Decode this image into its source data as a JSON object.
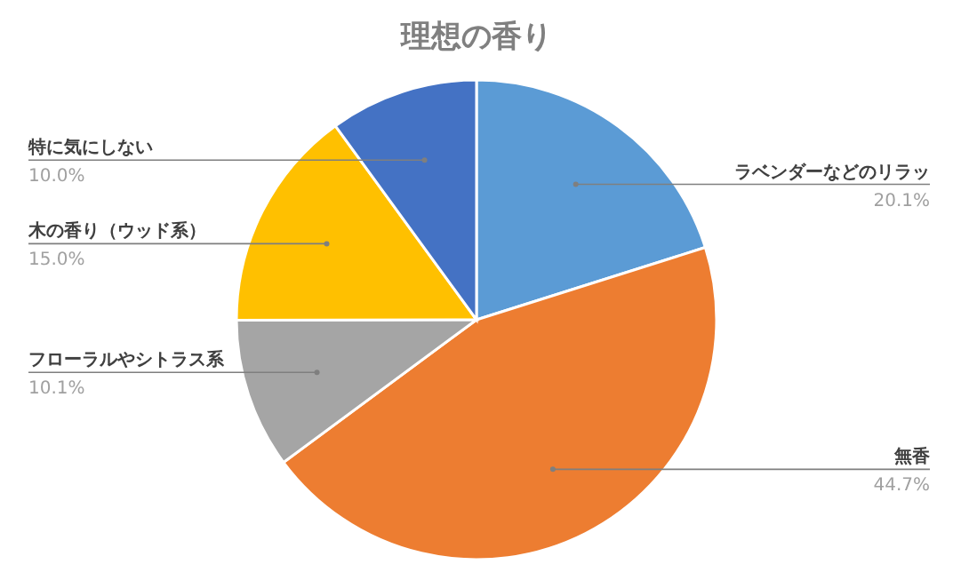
{
  "chart_data": {
    "type": "pie",
    "title": "理想の香り",
    "categories": [
      "ラベンダーなどのリラッ",
      "無香",
      "フローラルやシトラス系",
      "木の香り（ウッド系）",
      "特に気にしない"
    ],
    "values": [
      20.1,
      44.7,
      10.1,
      15.0,
      10.0
    ],
    "value_labels": [
      "20.1%",
      "44.7%",
      "10.1%",
      "15.0%",
      "10.0%"
    ],
    "colors": [
      "#5b9bd5",
      "#ed7d31",
      "#a5a5a5",
      "#ffc000",
      "#4472c4"
    ]
  }
}
